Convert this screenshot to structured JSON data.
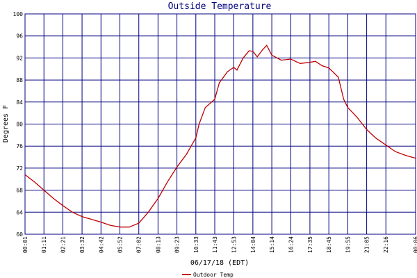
{
  "chart_data": {
    "type": "line",
    "title": "Outside Temperature",
    "xlabel": "06/17/18 (EDT)",
    "ylabel": "Degrees F",
    "x": [
      1,
      36,
      71,
      106,
      141,
      176,
      212,
      247,
      282,
      317,
      352,
      387,
      422,
      457,
      493,
      528,
      563,
      598,
      633,
      645,
      668,
      703,
      720,
      750,
      773,
      785,
      808,
      830,
      844,
      860,
      880,
      895,
      914,
      949,
      984,
      1019,
      1055,
      1075,
      1100,
      1125,
      1160,
      1180,
      1195,
      1230,
      1265,
      1300,
      1336,
      1371,
      1410,
      1446
    ],
    "series": [
      {
        "name": "Outdoor Temp",
        "color": "#c00000",
        "values": [
          70.8,
          69.5,
          68,
          66.5,
          65.2,
          64,
          63.2,
          62.7,
          62.2,
          61.6,
          61.3,
          61.3,
          62,
          64,
          66.5,
          69.5,
          72.2,
          74.5,
          77.5,
          80,
          83,
          84.5,
          87.5,
          89.5,
          90.3,
          89.8,
          92,
          93.3,
          93.2,
          92.2,
          93.5,
          94.3,
          92.5,
          91.6,
          91.8,
          91,
          91.2,
          91.4,
          90.6,
          90.2,
          88.5,
          84.5,
          83,
          81.2,
          79,
          77.4,
          76.2,
          75,
          74.3,
          73.8
        ]
      }
    ],
    "xlim": [
      1,
      1446
    ],
    "xticks": [
      {
        "value": 1,
        "label": "00:01"
      },
      {
        "value": 71,
        "label": "01:11"
      },
      {
        "value": 141,
        "label": "02:21"
      },
      {
        "value": 212,
        "label": "03:32"
      },
      {
        "value": 282,
        "label": "04:42"
      },
      {
        "value": 352,
        "label": "05:52"
      },
      {
        "value": 422,
        "label": "07:02"
      },
      {
        "value": 493,
        "label": "08:13"
      },
      {
        "value": 563,
        "label": "09:23"
      },
      {
        "value": 633,
        "label": "10:33"
      },
      {
        "value": 703,
        "label": "11:43"
      },
      {
        "value": 773,
        "label": "12:53"
      },
      {
        "value": 844,
        "label": "14:04"
      },
      {
        "value": 914,
        "label": "15:14"
      },
      {
        "value": 984,
        "label": "16:24"
      },
      {
        "value": 1055,
        "label": "17:35"
      },
      {
        "value": 1125,
        "label": "18:45"
      },
      {
        "value": 1195,
        "label": "19:55"
      },
      {
        "value": 1265,
        "label": "21:05"
      },
      {
        "value": 1336,
        "label": "22:16"
      },
      {
        "value": 1446,
        "label": "00:06"
      }
    ],
    "ylim": [
      60,
      100
    ],
    "yticks": [
      60,
      64,
      68,
      72,
      76,
      80,
      84,
      88,
      92,
      96,
      100
    ],
    "grid": true,
    "grid_color": "#000080"
  }
}
